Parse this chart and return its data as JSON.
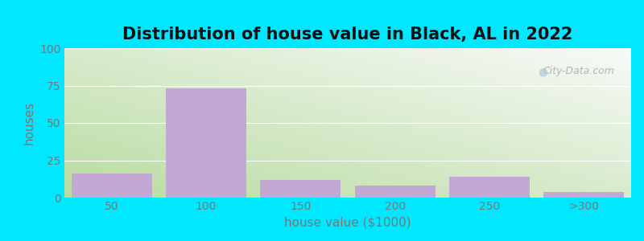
{
  "title": "Distribution of house value in Black, AL in 2022",
  "xlabel": "house value ($1000)",
  "ylabel": "houses",
  "categories": [
    "50",
    "100",
    "150",
    "200",
    "250",
    ">300"
  ],
  "values": [
    16,
    73,
    12,
    8,
    14,
    4
  ],
  "bar_color": "#c4a8d4",
  "bar_edgecolor": "#c4a8d4",
  "ylim": [
    0,
    100
  ],
  "yticks": [
    0,
    25,
    50,
    75,
    100
  ],
  "background_outer": "#00e8ff",
  "grad_color_left": "#c8e8b0",
  "grad_color_right": "#f0f8f0",
  "grad_color_topleft": "#bce0a8",
  "grad_color_bottomright": "#f8f8ff",
  "title_fontsize": 15,
  "axis_label_fontsize": 11,
  "tick_fontsize": 10,
  "watermark_text": "City-Data.com",
  "watermark_color": "#aaaaaa",
  "grid_color": "#ffffff",
  "tick_color": "#777777"
}
